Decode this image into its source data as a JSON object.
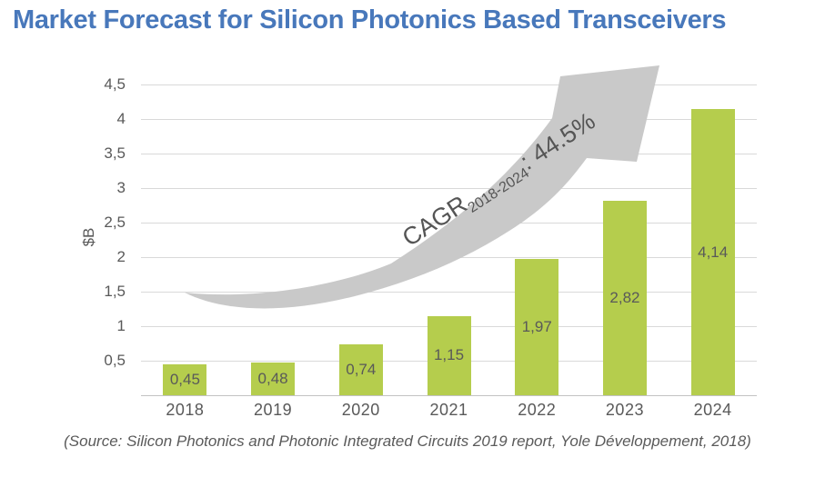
{
  "page": {
    "title": "Market Forecast for Silicon Photonics Based Transceivers",
    "source": "(Source: Silicon Photonics and Photonic Integrated Circuits 2019 report, Yole Développement, 2018)"
  },
  "annotation": {
    "prefix": "CAGR",
    "subscript": "2018-2024",
    "suffix": ": 44.5%"
  },
  "colors": {
    "title_blue": "#4878bb",
    "bar_green": "#b5cd4d",
    "arrow_gray": "#c9c9c9",
    "axis_text_gray": "#595959",
    "gridline_gray": "#d9d9d9"
  },
  "chart_data": {
    "type": "bar",
    "title": "Market Forecast for Silicon Photonics Based Transceivers",
    "categories": [
      "2018",
      "2019",
      "2020",
      "2021",
      "2022",
      "2023",
      "2024"
    ],
    "values": [
      0.45,
      0.48,
      0.74,
      1.15,
      1.97,
      2.82,
      4.14
    ],
    "value_labels": [
      "0,45",
      "0,48",
      "0,74",
      "1,15",
      "1,97",
      "2,82",
      "4,14"
    ],
    "xlabel": "",
    "ylabel": "$B",
    "ylim": [
      0,
      4.5
    ],
    "ytick_step": 0.5,
    "ytick_labels_top_to_bottom": [
      "4,5",
      "4",
      "3,5",
      "3",
      "2,5",
      "2",
      "1,5",
      "1",
      "0,5"
    ],
    "grid": true,
    "legend": false,
    "annotation_text": "CAGR 2018-2024: 44.5%",
    "annotation_meaning": "compound annual growth rate over forecast period, drawn on rising gray arrow"
  }
}
